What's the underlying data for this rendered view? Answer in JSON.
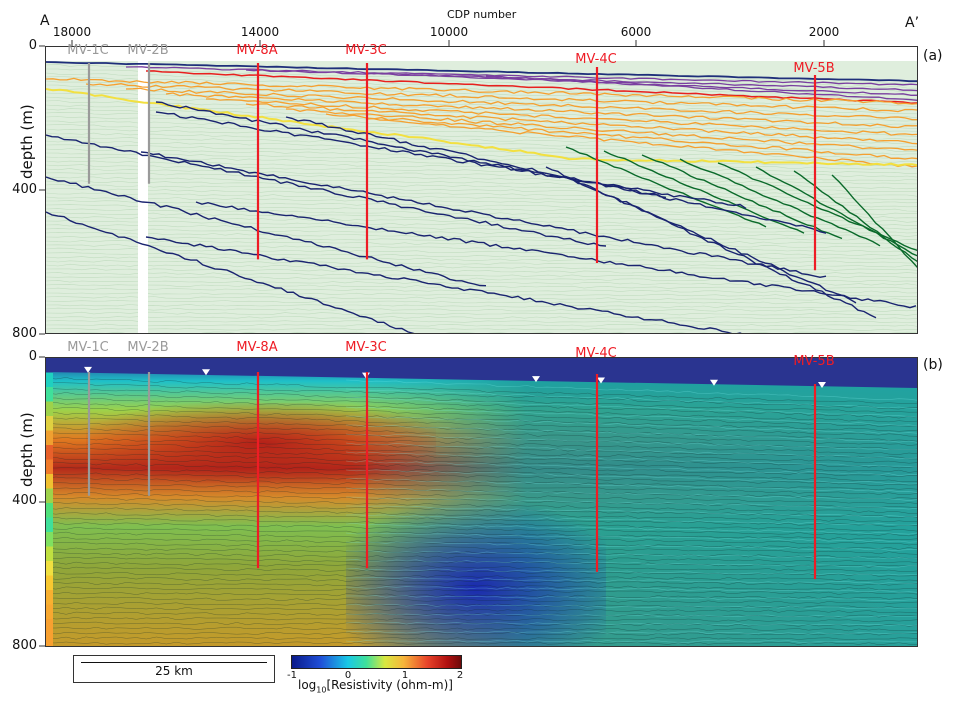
{
  "figure": {
    "section_start_label": "A",
    "section_end_label": "A’",
    "top_axis_title": "CDP number",
    "top_axis_ticks": [
      "18000",
      "14000",
      "10000",
      "6000",
      "2000"
    ],
    "depth_axis_title": "depth (m)",
    "depth_ticks": [
      "0",
      "400",
      "800"
    ],
    "panel_a": {
      "tag": "(a)",
      "wells": [
        {
          "name": "MV-1C",
          "color": "#9a9a9a",
          "max_depth_m": 380
        },
        {
          "name": "MV-2B",
          "color": "#9a9a9a",
          "max_depth_m": 380
        },
        {
          "name": "MV-8A",
          "color": "#ee1c25",
          "max_depth_m": 590
        },
        {
          "name": "MV-3C",
          "color": "#ee1c25",
          "max_depth_m": 590
        },
        {
          "name": "MV-4C",
          "color": "#ee1c25",
          "max_depth_m": 600
        },
        {
          "name": "MV-5B",
          "color": "#ee1c25",
          "max_depth_m": 620
        }
      ],
      "horizon_colors": {
        "seafloor": "#1f2f7a",
        "purple": "#7a3fa0",
        "red": "#e8201e",
        "orange": "#f5a030",
        "yellow": "#f2e040",
        "green": "#0a6a2a",
        "navy": "#1a2470"
      },
      "background_color": "#dfeedd"
    },
    "panel_b": {
      "tag": "(b)",
      "wells": [
        {
          "name": "MV-1C",
          "color": "#9a9a9a",
          "max_depth_m": 380
        },
        {
          "name": "MV-2B",
          "color": "#9a9a9a",
          "max_depth_m": 380
        },
        {
          "name": "MV-8A",
          "color": "#ee1c25",
          "max_depth_m": 580
        },
        {
          "name": "MV-3C",
          "color": "#ee1c25",
          "max_depth_m": 580
        },
        {
          "name": "MV-4C",
          "color": "#ee1c25",
          "max_depth_m": 590
        },
        {
          "name": "MV-5B",
          "color": "#ee1c25",
          "max_depth_m": 610
        }
      ],
      "marker_count": 8,
      "water_color": "#2a3490"
    },
    "scalebar": {
      "label": "25 km"
    },
    "colorbar": {
      "ticks": [
        "-1",
        "0",
        "1",
        "2"
      ],
      "title_prefix": "log",
      "title_sub": "10",
      "title_suffix": "[Resistivity (ohm-m)]"
    }
  }
}
